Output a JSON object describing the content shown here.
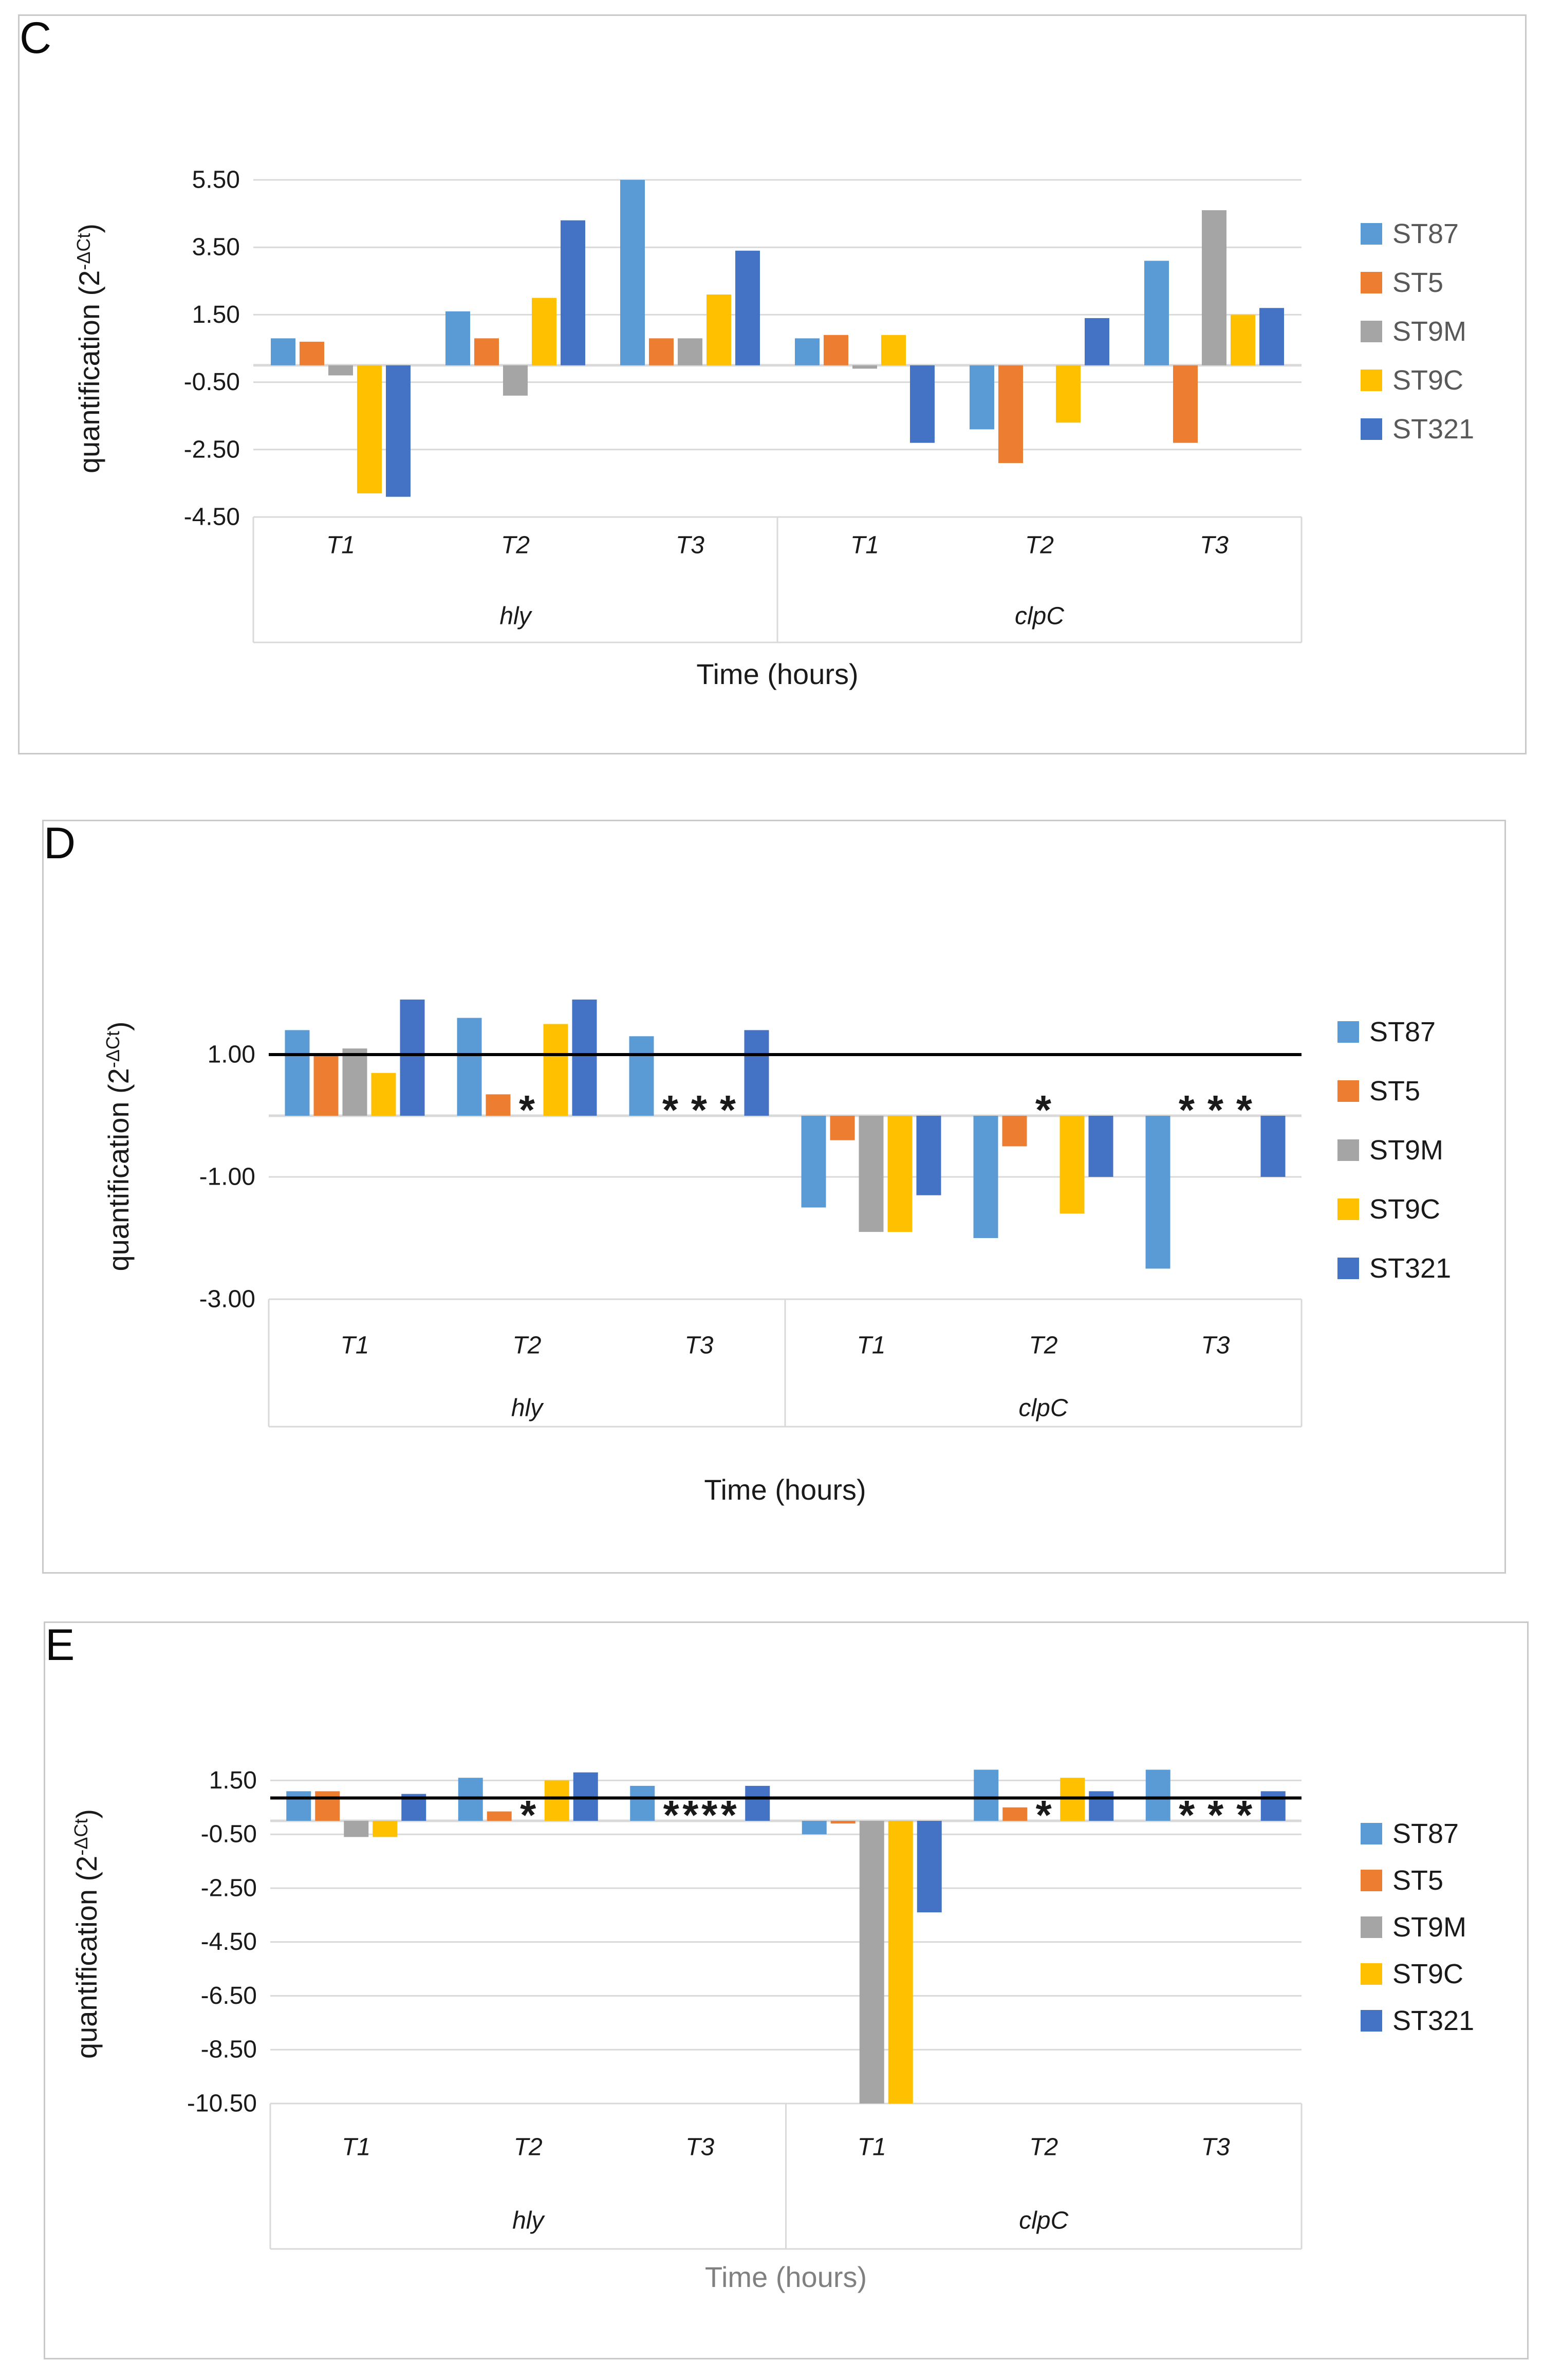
{
  "figure": {
    "background": "#ffffff",
    "grid_color": "#d9d9d9",
    "axis_color": "#d9d9d9",
    "reference_line_color": "#000000",
    "star_symbol": "*"
  },
  "chart_data": [
    {
      "type": "bar",
      "panel_letter": "C",
      "ylabel": "quantification (2^-ΔCt)",
      "ylabel_parts": {
        "base": "quantification (2",
        "sup": "-ΔCt",
        "close": ")"
      },
      "xlabel": "Time (hours)",
      "xlabel_color": "#1a1a1a",
      "legend_position": "right",
      "legend_text_color": "#595959",
      "grid": true,
      "ylim": [
        -4.5,
        5.5
      ],
      "yticks": [
        {
          "value": 5.5,
          "label": "5.50"
        },
        {
          "value": 3.5,
          "label": "3.50"
        },
        {
          "value": 1.5,
          "label": "1.50"
        },
        {
          "value": -0.5,
          "label": "-0.50"
        },
        {
          "value": -2.5,
          "label": "-2.50"
        },
        {
          "value": -4.5,
          "label": "-4.50"
        }
      ],
      "reference_line": null,
      "categories": [
        "T1",
        "T2",
        "T3",
        "T1",
        "T2",
        "T3"
      ],
      "genes": [
        "hly",
        "clpC"
      ],
      "series": [
        {
          "name": "ST87",
          "color": "#5B9BD5",
          "values": [
            0.8,
            1.6,
            5.5,
            0.8,
            -1.9,
            3.1
          ]
        },
        {
          "name": "ST5",
          "color": "#ED7D31",
          "values": [
            0.7,
            0.8,
            0.8,
            0.9,
            -2.9,
            -2.3
          ]
        },
        {
          "name": "ST9M",
          "color": "#A5A5A5",
          "values": [
            -0.3,
            -0.9,
            0.8,
            -0.1,
            null,
            4.6
          ]
        },
        {
          "name": "ST9C",
          "color": "#FFC000",
          "values": [
            -3.8,
            2.0,
            2.1,
            0.9,
            -1.7,
            1.5
          ]
        },
        {
          "name": "ST321",
          "color": "#4472C4",
          "values": [
            -3.9,
            4.3,
            3.4,
            -2.3,
            1.4,
            1.7
          ]
        }
      ],
      "significance_stars": []
    },
    {
      "type": "bar",
      "panel_letter": "D",
      "ylabel": "quantification (2^-ΔCt)",
      "ylabel_parts": {
        "base": "quantification (2",
        "sup": "-ΔCt",
        "close": ")"
      },
      "xlabel": "Time (hours)",
      "xlabel_color": "#1a1a1a",
      "legend_position": "right",
      "legend_text_color": "#1a1a1a",
      "grid": true,
      "ylim": [
        -3.0,
        2.0
      ],
      "yticks": [
        {
          "value": 1.0,
          "label": "1.00"
        },
        {
          "value": -1.0,
          "label": "-1.00"
        },
        {
          "value": -3.0,
          "label": "-3.00"
        }
      ],
      "reference_line": 1.0,
      "categories": [
        "T1",
        "T2",
        "T3",
        "T1",
        "T2",
        "T3"
      ],
      "genes": [
        "hly",
        "clpC"
      ],
      "series": [
        {
          "name": "ST87",
          "color": "#5B9BD5",
          "values": [
            1.4,
            1.6,
            1.3,
            -1.5,
            -2.0,
            -2.5
          ]
        },
        {
          "name": "ST5",
          "color": "#ED7D31",
          "values": [
            1.0,
            0.35,
            null,
            -0.4,
            -0.5,
            null
          ]
        },
        {
          "name": "ST9M",
          "color": "#A5A5A5",
          "values": [
            1.1,
            null,
            null,
            -1.9,
            null,
            null
          ]
        },
        {
          "name": "ST9C",
          "color": "#FFC000",
          "values": [
            0.7,
            1.5,
            null,
            -1.9,
            -1.6,
            null
          ]
        },
        {
          "name": "ST321",
          "color": "#4472C4",
          "values": [
            1.9,
            1.9,
            1.4,
            -1.3,
            -1.0,
            -1.0
          ]
        }
      ],
      "significance_stars": [
        {
          "group": 1,
          "slots": [
            2
          ]
        },
        {
          "group": 2,
          "slots": [
            1,
            2,
            3
          ]
        },
        {
          "group": 4,
          "slots": [
            2
          ]
        },
        {
          "group": 5,
          "slots": [
            1,
            2,
            3
          ]
        }
      ]
    },
    {
      "type": "bar",
      "panel_letter": "E",
      "ylabel": "quantification (2^-ΔCt)",
      "ylabel_parts": {
        "base": "quantification (2",
        "sup": "-ΔCt",
        "close": ")"
      },
      "xlabel": "Time (hours)",
      "xlabel_color": "#808080",
      "legend_position": "right",
      "legend_text_color": "#1a1a1a",
      "grid": true,
      "ylim": [
        -10.5,
        2.1
      ],
      "yticks": [
        {
          "value": 1.5,
          "label": "1.50"
        },
        {
          "value": -0.5,
          "label": "-0.50"
        },
        {
          "value": -2.5,
          "label": "-2.50"
        },
        {
          "value": -4.5,
          "label": "-4.50"
        },
        {
          "value": -6.5,
          "label": "-6.50"
        },
        {
          "value": -8.5,
          "label": "-8.50"
        },
        {
          "value": -10.5,
          "label": "-10.50"
        }
      ],
      "reference_line": 0.85,
      "categories": [
        "T1",
        "T2",
        "T3",
        "T1",
        "T2",
        "T3"
      ],
      "genes": [
        "hly",
        "clpC"
      ],
      "series": [
        {
          "name": "ST87",
          "color": "#5B9BD5",
          "values": [
            1.1,
            1.6,
            1.3,
            -0.5,
            1.9,
            1.9
          ]
        },
        {
          "name": "ST5",
          "color": "#ED7D31",
          "values": [
            1.1,
            0.35,
            null,
            -0.1,
            0.5,
            null
          ]
        },
        {
          "name": "ST9M",
          "color": "#A5A5A5",
          "values": [
            -0.6,
            null,
            null,
            -10.5,
            null,
            null
          ]
        },
        {
          "name": "ST9C",
          "color": "#FFC000",
          "values": [
            -0.6,
            1.5,
            null,
            -10.5,
            1.6,
            null
          ]
        },
        {
          "name": "ST321",
          "color": "#4472C4",
          "values": [
            1.0,
            1.8,
            1.3,
            -3.4,
            1.1,
            1.1
          ]
        }
      ],
      "significance_stars": [
        {
          "group": 1,
          "slots": [
            2
          ]
        },
        {
          "group": 2,
          "slots": [
            1,
            1.67,
            2.33,
            3
          ]
        },
        {
          "group": 4,
          "slots": [
            2
          ]
        },
        {
          "group": 5,
          "slots": [
            1,
            2,
            3
          ]
        }
      ]
    }
  ]
}
